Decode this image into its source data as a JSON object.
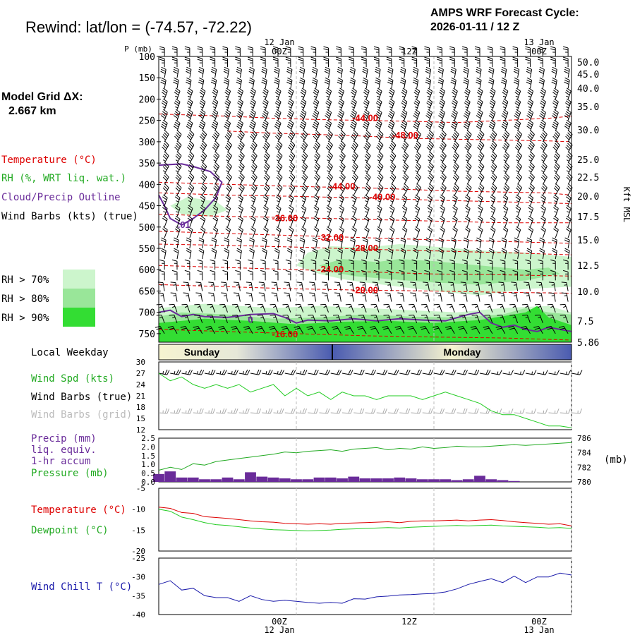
{
  "header": {
    "title": "Rewind:  lat/lon = (-74.57, -72.22)",
    "cycle_line1": "AMPS WRF Forecast Cycle:",
    "cycle_line2": "2026-01-11 / 12  Z"
  },
  "model_grid": {
    "label": "Model Grid ΔX:",
    "value": "2.667 km"
  },
  "legend": {
    "temperature": "Temperature (°C)",
    "rh": "RH (%, WRT liq. wat.)",
    "cloud": "Cloud/Precip Outline",
    "wind": "Wind Barbs (kts) (true)",
    "rh70": "RH > 70%",
    "rh80": "RH > 80%",
    "rh90": "RH > 90%"
  },
  "colors": {
    "temperature": "#dd0000",
    "rh": "#22bb22",
    "cloud": "#6a2c9a",
    "precip": "#6a2c9a",
    "rh70": "#ccf5cc",
    "rh80": "#99e699",
    "rh90": "#33dd33",
    "windchill": "#1a1aaa",
    "wind_speed": "#22cc22",
    "weekday_dark": "#4a5bb0",
    "weekday_light": "#f6f4d0"
  },
  "time_axis": {
    "top_dates": [
      "12 Jan",
      "13 Jan"
    ],
    "top_hours": [
      "00Z",
      "12Z",
      "00Z"
    ],
    "bottom_hours": [
      "00Z",
      "12Z",
      "00Z"
    ],
    "bottom_dates": [
      "12 Jan",
      "13 Jan"
    ]
  },
  "chart_data": [
    {
      "type": "heatmap",
      "name": "cross-section",
      "x_hours": [
        12,
        48
      ],
      "pressure_label": "P (mb)",
      "pressure_ticks": [
        "100",
        "150",
        "200",
        "250",
        "300",
        "350",
        "400",
        "450",
        "500",
        "550",
        "600",
        "650",
        "700",
        "750"
      ],
      "kft_ticks": [
        "50.0",
        "45.0",
        "40.0",
        "35.0",
        "30.0",
        "25.0",
        "22.5",
        "20.0",
        "17.5",
        "15.0",
        "12.5",
        "10.0",
        "7.5",
        "5.86"
      ],
      "kft_label": "Kft MSL",
      "isotherm_labels": [
        {
          "text": "-44.00",
          "hour": 30,
          "p": 245
        },
        {
          "text": "-48.00",
          "hour": 33.5,
          "p": 285
        },
        {
          "text": "-44.00",
          "hour": 28,
          "p": 405
        },
        {
          "text": "-40.00",
          "hour": 31.5,
          "p": 430
        },
        {
          "text": "-36.00",
          "hour": 23,
          "p": 480
        },
        {
          "text": "-32.00",
          "hour": 27,
          "p": 525
        },
        {
          "text": "-28.00",
          "hour": 30,
          "p": 550
        },
        {
          "text": "-24.00",
          "hour": 27,
          "p": 600
        },
        {
          "text": "-20.00",
          "hour": 30,
          "p": 648
        },
        {
          "text": "-16.00",
          "hour": 23,
          "p": 752
        }
      ],
      "cloud_labels": [
        {
          "text": ".01",
          "hour": 14.2,
          "p": 495
        },
        {
          "text": "0",
          "hour": 20,
          "p": 718
        }
      ],
      "wind_barbs_kts": {
        "hours": [
          12,
          14,
          16,
          18,
          20,
          22,
          24,
          26,
          28,
          30,
          32,
          34,
          36,
          38,
          40,
          42,
          44,
          46,
          48
        ],
        "levels_mb": [
          100,
          150,
          200,
          250,
          300,
          350,
          400,
          450,
          500,
          550,
          600,
          650,
          700,
          750
        ],
        "speed_by_level": [
          25,
          30,
          35,
          40,
          40,
          35,
          30,
          25,
          20,
          20,
          15,
          15,
          15,
          20
        ],
        "direction_by_level": [
          270,
          280,
          290,
          290,
          300,
          300,
          300,
          290,
          290,
          280,
          270,
          260,
          250,
          240
        ]
      }
    },
    {
      "type": "line",
      "name": "wind-speed",
      "x_hours": [
        12,
        13,
        14,
        15,
        16,
        17,
        18,
        19,
        20,
        21,
        22,
        23,
        24,
        25,
        26,
        27,
        28,
        29,
        30,
        31,
        32,
        33,
        34,
        35,
        36,
        37,
        38,
        39,
        40,
        41,
        42,
        43,
        44,
        45,
        46,
        47,
        48
      ],
      "wind_speed_kts": [
        27,
        25,
        26,
        24,
        23,
        24,
        23,
        24,
        22,
        23,
        24,
        21,
        23,
        21,
        22,
        20,
        22,
        21,
        21,
        20,
        21,
        21,
        21,
        20,
        21,
        22,
        21,
        20,
        19,
        17,
        16,
        16,
        15,
        14,
        13,
        13,
        12.5
      ],
      "y_ticks": [
        "12",
        "15",
        "18",
        "21",
        "24",
        "27",
        "30"
      ],
      "ylim": [
        12,
        30
      ],
      "labels": {
        "speed": "Wind Spd (kts)",
        "barbs_true": "Wind Barbs (true)",
        "barbs_grid": "Wind Barbs (grid)"
      }
    },
    {
      "type": "bar",
      "name": "precip-pressure",
      "x_hours": [
        12,
        13,
        14,
        15,
        16,
        17,
        18,
        19,
        20,
        21,
        22,
        23,
        24,
        25,
        26,
        27,
        28,
        29,
        30,
        31,
        32,
        33,
        34,
        35,
        36,
        37,
        38,
        39,
        40,
        41,
        42,
        43,
        44,
        45,
        46,
        47,
        48
      ],
      "precip_mm": [
        0.45,
        0.6,
        0.25,
        0.25,
        0.15,
        0.15,
        0.25,
        0.15,
        0.55,
        0.3,
        0.25,
        0.2,
        0.15,
        0.15,
        0.25,
        0.25,
        0.2,
        0.3,
        0.2,
        0.2,
        0.2,
        0.25,
        0.2,
        0.15,
        0.15,
        0.15,
        0.1,
        0.15,
        0.35,
        0.15,
        0.1,
        0.05,
        0.0,
        0.0,
        0.0,
        0.0,
        0.0
      ],
      "pressure_mb": [
        781.6,
        782.0,
        781.7,
        782.5,
        782.3,
        782.8,
        783.0,
        783.2,
        783.4,
        783.6,
        783.8,
        784.1,
        784.0,
        784.2,
        784.3,
        784.4,
        784.2,
        784.5,
        784.6,
        784.7,
        784.4,
        784.6,
        784.5,
        784.8,
        784.6,
        784.7,
        784.9,
        784.8,
        784.8,
        784.9,
        785.0,
        785.1,
        785.0,
        785.1,
        785.2,
        785.3,
        785.4
      ],
      "left_ticks": [
        "0.0",
        "0.5",
        "1.0",
        "1.5",
        "2.0",
        "2.5"
      ],
      "right_ticks": [
        "780",
        "782",
        "784",
        "786"
      ],
      "ylim_left": [
        0,
        2.5
      ],
      "ylim_right": [
        780,
        786
      ],
      "right_unit": "(mb)",
      "labels": {
        "precip": "Precip (mm)",
        "liq": "liq. equiv.",
        "accum": "1-hr accum",
        "pressure": "Pressure (mb)"
      }
    },
    {
      "type": "line",
      "name": "temperature-dewpoint",
      "x_hours": [
        12,
        13,
        14,
        15,
        16,
        17,
        18,
        19,
        20,
        21,
        22,
        23,
        24,
        25,
        26,
        27,
        28,
        29,
        30,
        31,
        32,
        33,
        34,
        35,
        36,
        37,
        38,
        39,
        40,
        41,
        42,
        43,
        44,
        45,
        46,
        47,
        48
      ],
      "temperature_c": [
        -9.5,
        -9.8,
        -10.8,
        -11.0,
        -11.8,
        -12.0,
        -12.2,
        -12.5,
        -12.8,
        -13.0,
        -13.1,
        -13.4,
        -13.5,
        -13.6,
        -13.5,
        -13.6,
        -13.4,
        -13.3,
        -13.2,
        -13.1,
        -13.0,
        -13.2,
        -12.9,
        -12.8,
        -12.8,
        -12.7,
        -12.6,
        -12.8,
        -12.6,
        -12.5,
        -12.7,
        -13.0,
        -13.2,
        -13.4,
        -13.6,
        -13.5,
        -14.0
      ],
      "dewpoint_c": [
        -10.0,
        -10.5,
        -11.9,
        -12.5,
        -13.2,
        -13.7,
        -13.9,
        -14.2,
        -14.5,
        -14.7,
        -14.9,
        -15.0,
        -15.1,
        -15.2,
        -15.1,
        -15.0,
        -14.8,
        -14.7,
        -14.6,
        -14.5,
        -14.4,
        -14.5,
        -14.3,
        -14.2,
        -14.1,
        -14.0,
        -13.9,
        -14.0,
        -13.9,
        -13.8,
        -14.0,
        -14.1,
        -14.2,
        -14.3,
        -14.5,
        -14.4,
        -14.6
      ],
      "y_ticks": [
        "-20",
        "-15",
        "-10",
        "-5"
      ],
      "ylim": [
        -20,
        -5
      ],
      "labels": {
        "temperature": "Temperature (°C)",
        "dewpoint": "Dewpoint (°C)"
      }
    },
    {
      "type": "line",
      "name": "wind-chill",
      "x_hours": [
        12,
        13,
        14,
        15,
        16,
        17,
        18,
        19,
        20,
        21,
        22,
        23,
        24,
        25,
        26,
        27,
        28,
        29,
        30,
        31,
        32,
        33,
        34,
        35,
        36,
        37,
        38,
        39,
        40,
        41,
        42,
        43,
        44,
        45,
        46,
        47,
        48
      ],
      "wind_chill_c": [
        -32.0,
        -31.0,
        -33.5,
        -33.0,
        -35.0,
        -35.5,
        -35.5,
        -36.5,
        -35.0,
        -36.0,
        -36.5,
        -36.2,
        -36.5,
        -36.8,
        -37.0,
        -36.8,
        -37.0,
        -35.8,
        -35.9,
        -35.3,
        -35.1,
        -34.8,
        -34.7,
        -34.5,
        -34.4,
        -34.0,
        -33.2,
        -32.0,
        -31.2,
        -30.5,
        -31.5,
        -29.8,
        -31.5,
        -30.0,
        -30.0,
        -29.0,
        -29.5
      ],
      "y_ticks": [
        "-40",
        "-35",
        "-30",
        "-25"
      ],
      "ylim": [
        -40,
        -25
      ],
      "labels": {
        "windchill": "Wind Chill T (°C)"
      }
    }
  ],
  "weekday": {
    "label": "Local Weekday",
    "days": [
      "Sunday",
      "Monday"
    ]
  }
}
